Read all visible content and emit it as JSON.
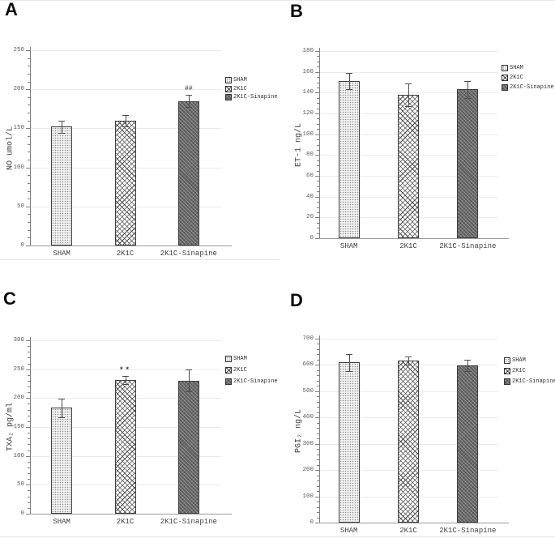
{
  "figure": {
    "panel_labels": [
      "A",
      "B",
      "C",
      "D"
    ],
    "colors": {
      "axis": "#7f7f7f",
      "grid": "#ebebeb",
      "tick_text": "#595959",
      "label_text": "#3f3f3f",
      "bar_outline": "#404040",
      "bar_light_fill": "#f2f2f2",
      "bar_dark_fill": "#696969",
      "background": "#ffffff"
    }
  },
  "chart_data": [
    {
      "type": "bar",
      "panel": "A",
      "title": "",
      "xlabel": "",
      "ylabel": "NO umol/L",
      "ylim": [
        0,
        250
      ],
      "ytick_step": 50,
      "yticks": [
        0,
        50,
        100,
        150,
        200,
        250
      ],
      "categories": [
        "SHAM",
        "2K1C",
        "2K1C-Sinapine"
      ],
      "values": [
        152,
        160,
        185
      ],
      "errors": [
        8,
        7,
        8
      ],
      "bar_patterns": [
        "dotted",
        "crosshatch",
        "dark"
      ],
      "annotations": [
        {
          "category": "2K1C-Sinapine",
          "text": "##"
        }
      ],
      "legend": [
        "SHAM",
        "2K1C",
        "2K1C-Sinapine"
      ],
      "legend_position": "right",
      "grid": true
    },
    {
      "type": "bar",
      "panel": "B",
      "title": "",
      "xlabel": "",
      "ylabel": "ET-1 ng/L",
      "ylim": [
        0,
        180
      ],
      "ytick_step": 20,
      "yticks": [
        0,
        20,
        40,
        60,
        80,
        100,
        120,
        140,
        160,
        180
      ],
      "categories": [
        "SHAM",
        "2K1C",
        "2K1C-Sinapine"
      ],
      "values": [
        151,
        138,
        143
      ],
      "errors": [
        8,
        11,
        8
      ],
      "bar_patterns": [
        "dotted",
        "crosshatch",
        "dark"
      ],
      "annotations": [],
      "legend": [
        "SHAM",
        "2K1C",
        "2K1C-Sinapine"
      ],
      "legend_position": "right",
      "grid": true
    },
    {
      "type": "bar",
      "panel": "C",
      "title": "",
      "xlabel": "",
      "ylabel": "TXA₂ pg/ml",
      "ylim": [
        0,
        300
      ],
      "ytick_step": 50,
      "yticks": [
        0,
        50,
        100,
        150,
        200,
        250,
        300
      ],
      "categories": [
        "SHAM",
        "2K1C",
        "2K1C-Sinapine"
      ],
      "values": [
        183,
        232,
        230
      ],
      "errors": [
        16,
        7,
        19
      ],
      "bar_patterns": [
        "dotted",
        "crosshatch",
        "dark"
      ],
      "annotations": [
        {
          "category": "2K1C",
          "text": "**"
        }
      ],
      "legend": [
        "SHAM",
        "2K1C",
        "2K1C-Sinapine"
      ],
      "legend_position": "right",
      "grid": true
    },
    {
      "type": "bar",
      "panel": "D",
      "title": "",
      "xlabel": "",
      "ylabel": "PGI₂ ng/L",
      "ylim": [
        0,
        700
      ],
      "ytick_step": 100,
      "yticks": [
        0,
        100,
        200,
        300,
        400,
        500,
        600,
        700
      ],
      "categories": [
        "SHAM",
        "2K1C",
        "2K1C-Sinapine"
      ],
      "values": [
        610,
        616,
        598
      ],
      "errors": [
        32,
        15,
        21
      ],
      "bar_patterns": [
        "dotted",
        "crosshatch",
        "dark"
      ],
      "annotations": [],
      "legend": [
        "SHAM",
        "2K1C",
        "2K1C-Sinapine"
      ],
      "legend_position": "right",
      "grid": true
    }
  ]
}
